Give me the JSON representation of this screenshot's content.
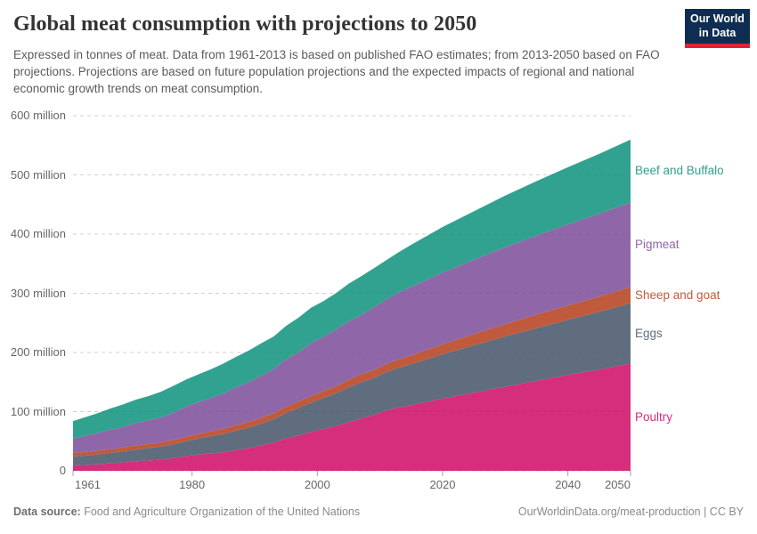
{
  "header": {
    "title": "Global meat consumption with projections to 2050",
    "subtitle": "Expressed in tonnes of meat. Data from 1961-2013 is based on published FAO estimates; from 2013-2050 based on FAO projections. Projections are based on future population projections and the expected impacts of regional and national economic growth trends on meat consumption.",
    "logo": {
      "line1": "Our World",
      "line2": "in Data",
      "bg": "#0f2d52",
      "stripe": "#e0232e"
    }
  },
  "footer": {
    "source_label": "Data source:",
    "source_text": "Food and Agriculture Organization of the United Nations",
    "link_text": "OurWorldinData.org/meat-production | CC BY"
  },
  "chart_data": {
    "type": "area",
    "stacked": true,
    "title": "Global meat consumption with projections to 2050",
    "unit": "tonnes",
    "xlim": [
      1961,
      2050
    ],
    "ylim": [
      0,
      600000000
    ],
    "ylim_million": [
      0,
      600
    ],
    "projection_start": 2013,
    "grid": "dashed-horizontal",
    "legend_position": "right-of-plot",
    "x": [
      1961,
      1963,
      1965,
      1967,
      1969,
      1971,
      1973,
      1975,
      1977,
      1979,
      1981,
      1983,
      1985,
      1987,
      1989,
      1991,
      1993,
      1995,
      1997,
      1999,
      2001,
      2003,
      2005,
      2007,
      2009,
      2011,
      2013,
      2015,
      2020,
      2025,
      2030,
      2035,
      2040,
      2045,
      2050
    ],
    "series": [
      {
        "name": "Poultry",
        "color": "#d42e7d",
        "values_million": [
          9.0,
          9.9,
          11.1,
          12.6,
          14.2,
          15.9,
          17.5,
          18.7,
          21.3,
          24.5,
          27.4,
          29.5,
          31.5,
          34.8,
          38.2,
          42.8,
          47.5,
          54.6,
          59.9,
          65.5,
          70.9,
          75.8,
          82.0,
          88.5,
          94.2,
          101.9,
          107.4,
          111,
          122,
          132,
          142,
          152,
          162,
          171,
          181
        ]
      },
      {
        "name": "Eggs",
        "color": "#5f6d7e",
        "values_million": [
          15.1,
          15.7,
          16.6,
          17.6,
          18.7,
          19.9,
          20.8,
          22.0,
          23.5,
          25.3,
          27.0,
          28.8,
          30.8,
          32.9,
          34.6,
          36.6,
          39.4,
          43.0,
          46.3,
          49.5,
          52.3,
          55.2,
          58.8,
          61.0,
          62.8,
          64.9,
          66.8,
          69,
          75,
          80,
          85,
          89,
          93,
          97.5,
          102
        ]
      },
      {
        "name": "Sheep and goat",
        "color": "#bf5b3c",
        "values_million": [
          6.0,
          6.2,
          6.4,
          6.6,
          6.9,
          7.1,
          7.0,
          7.3,
          7.4,
          7.5,
          7.8,
          8.1,
          8.7,
          9.1,
          9.6,
          10.0,
          10.2,
          10.5,
          11.0,
          11.3,
          11.6,
          12.2,
          13.0,
          13.6,
          13.4,
          13.7,
          14.0,
          15,
          17,
          19,
          21,
          23,
          24.5,
          26,
          27.5
        ]
      },
      {
        "name": "Pigmeat",
        "color": "#8f67a9",
        "values_million": [
          24.7,
          27.4,
          29.9,
          32.7,
          34.3,
          38.0,
          40.0,
          41.7,
          46.0,
          50.9,
          54.0,
          56.5,
          59.9,
          64.0,
          67.0,
          71.2,
          74.8,
          80.1,
          83.2,
          89.4,
          92.0,
          95.9,
          98.8,
          100.1,
          106.0,
          109.0,
          113.2,
          116,
          121,
          125.5,
          130,
          133.5,
          137,
          140,
          143
        ]
      },
      {
        "name": "Beef and Buffalo",
        "color": "#31a28f",
        "values_million": [
          29.3,
          31.7,
          33.6,
          35.9,
          38.1,
          39.2,
          40.8,
          43.7,
          45.3,
          45.8,
          46.8,
          48.5,
          50.3,
          51.7,
          53.4,
          54.6,
          54.8,
          56.6,
          58.4,
          59.8,
          59.9,
          61.2,
          63.7,
          65.5,
          65.7,
          66.3,
          68.0,
          71,
          77,
          82,
          87,
          92,
          96.5,
          101,
          106
        ]
      }
    ],
    "yticks": [
      {
        "v": 0,
        "label": "0"
      },
      {
        "v": 100,
        "label": "100 million"
      },
      {
        "v": 200,
        "label": "200 million"
      },
      {
        "v": 300,
        "label": "300 million"
      },
      {
        "v": 400,
        "label": "400 million"
      },
      {
        "v": 500,
        "label": "500 million"
      },
      {
        "v": 600,
        "label": "600 million"
      }
    ],
    "xticks": [
      {
        "v": 1961,
        "label": "1961"
      },
      {
        "v": 1980,
        "label": "1980"
      },
      {
        "v": 2000,
        "label": "2000"
      },
      {
        "v": 2020,
        "label": "2020"
      },
      {
        "v": 2040,
        "label": "2040"
      },
      {
        "v": 2050,
        "label": "2050"
      }
    ]
  }
}
